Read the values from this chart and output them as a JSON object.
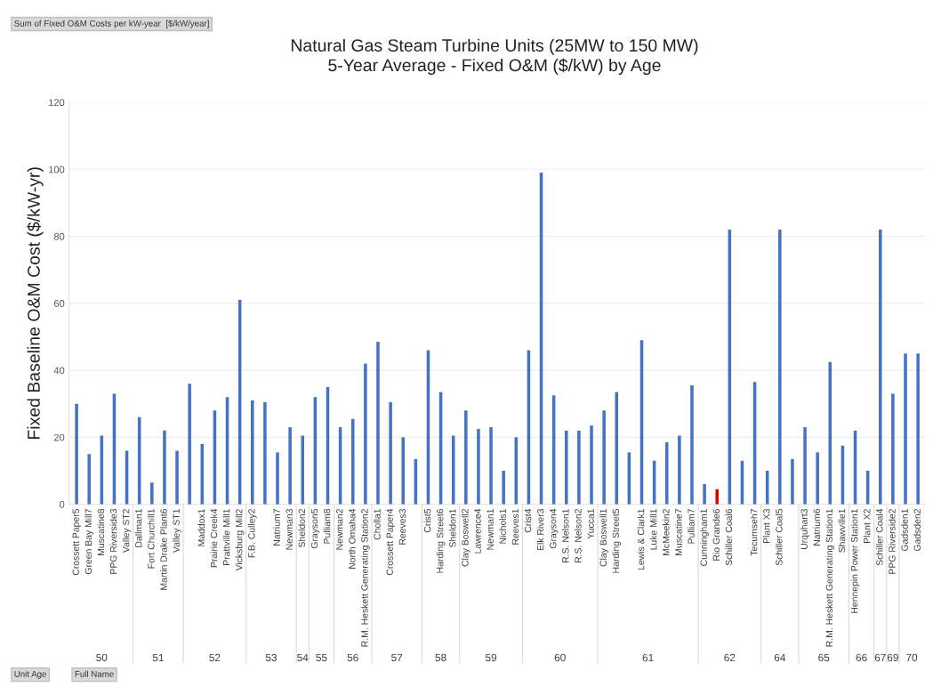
{
  "chart_data": {
    "type": "bar",
    "title": "Natural Gas Steam Turbine Units (25MW to 150 MW)",
    "subtitle": "5-Year Average - Fixed O&M ($/kW) by Age",
    "ylabel": "Fixed Baseline O&M Cost ($/kW-yr)",
    "categories": [
      "Crossett Paper5",
      "Green Bay Mill7",
      "Muscatine8",
      "PPG Riverside3",
      "Valley ST2",
      "Dallman1",
      "Fort Churchill1",
      "Martin Drake Plant6",
      "Valley ST1",
      null,
      "Maddox1",
      "Prairie Creek4",
      "Prattville Mill1",
      "Vicksburg Mill2",
      "F.B. Culley2",
      null,
      "Natrium7",
      "Newman3",
      "Sheldon2",
      "Grayson5",
      "Pulliam8",
      "Newman2",
      "North Omaha4",
      "R.M. Heskett Generating Station2",
      "Cholla1",
      "Crossett Paper4",
      "Reeves3",
      null,
      "Crist5",
      "Harding Street6",
      "Sheldon1",
      "Clay Boswell2",
      "Lawrence4",
      "Newman1",
      "Nichols1",
      "Reeves1",
      "Crist4",
      "Elk River3",
      "Grayson4",
      "R.S. Nelson1",
      "R.S. Nelson2",
      "Yucca1",
      "Clay Boswell1",
      "Harding Street5",
      null,
      "Lewis & Clark1",
      "Luke Mill1",
      "McMeekin2",
      "Muscatine7",
      "Pulliam7",
      "Cunningham1",
      "Rio Grande6",
      "Schiller Coal6",
      null,
      "Tecumseh7",
      "Plant X3",
      "Schiller Coal5",
      null,
      "Urquhart3",
      "Natrium6",
      "R.M. Heskett Generating Station1",
      "Shawville1",
      "Hennepin Power Station1",
      "Plant X2",
      "Schiller Coal4",
      "PPG Riverside2",
      "Gadsden1",
      "Gadsden2"
    ],
    "values": [
      30,
      15,
      20.5,
      33,
      16,
      26,
      6.5,
      22,
      16,
      36,
      18,
      28,
      32,
      61,
      31,
      30.5,
      15.5,
      23,
      20.5,
      32,
      35,
      23,
      25.5,
      42,
      48.5,
      30.5,
      20,
      13.5,
      46,
      33.5,
      20.5,
      28,
      22.5,
      23,
      10,
      20,
      46,
      99,
      32.5,
      22,
      22,
      23.5,
      28,
      33.5,
      15.5,
      49,
      13,
      18.5,
      20.5,
      35.5,
      6,
      4.5,
      82,
      13,
      36.5,
      10,
      82,
      13.5,
      23,
      15.5,
      42.5,
      17.5,
      22,
      10,
      82,
      33,
      45,
      45
    ],
    "colors": [
      "#4472c4",
      "#4472c4",
      "#4472c4",
      "#4472c4",
      "#4472c4",
      "#4472c4",
      "#4472c4",
      "#4472c4",
      "#4472c4",
      "#4472c4",
      "#4472c4",
      "#4472c4",
      "#4472c4",
      "#4472c4",
      "#4472c4",
      "#4472c4",
      "#4472c4",
      "#4472c4",
      "#4472c4",
      "#4472c4",
      "#4472c4",
      "#4472c4",
      "#4472c4",
      "#4472c4",
      "#4472c4",
      "#4472c4",
      "#4472c4",
      "#4472c4",
      "#4472c4",
      "#4472c4",
      "#4472c4",
      "#4472c4",
      "#4472c4",
      "#4472c4",
      "#4472c4",
      "#4472c4",
      "#4472c4",
      "#4472c4",
      "#4472c4",
      "#4472c4",
      "#4472c4",
      "#4472c4",
      "#4472c4",
      "#4472c4",
      "#4472c4",
      "#4472c4",
      "#4472c4",
      "#4472c4",
      "#4472c4",
      "#4472c4",
      "#4472c4",
      "#e00000",
      "#4472c4",
      "#4472c4",
      "#4472c4",
      "#4472c4",
      "#4472c4",
      "#4472c4",
      "#4472c4",
      "#4472c4",
      "#4472c4",
      "#4472c4",
      "#4472c4",
      "#4472c4",
      "#4472c4",
      "#4472c4",
      "#4472c4",
      "#4472c4"
    ],
    "ylim": [
      0,
      120
    ],
    "yticks": [
      0,
      20,
      40,
      60,
      80,
      100,
      120
    ],
    "grid": "y",
    "legend": false,
    "annotations": [
      "Sum of Fixed O&M Costs per kW-year  [$/kW/year]",
      "Unit Age",
      "Full Name",
      "50",
      "51",
      "52",
      "53",
      "54",
      "55",
      "56",
      "57",
      "58",
      "59",
      "60",
      "61",
      "62",
      "64",
      "65",
      "66",
      "67",
      "69",
      "70"
    ]
  }
}
